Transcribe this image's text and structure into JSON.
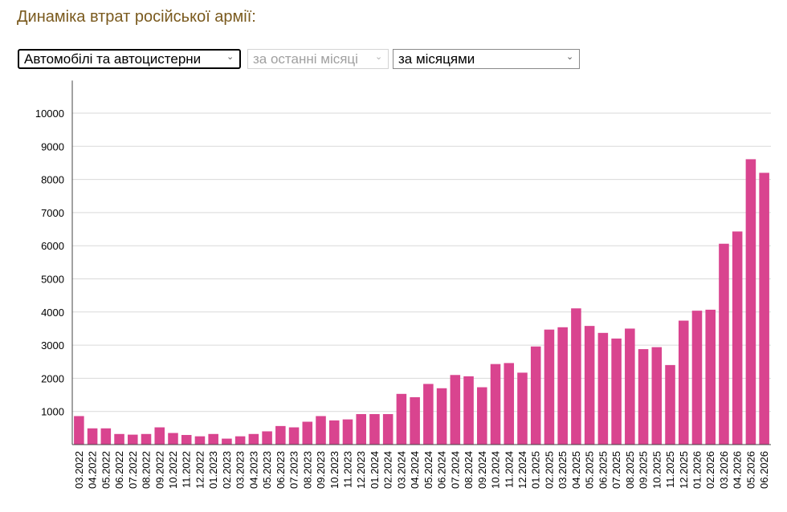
{
  "page": {
    "title": "Динаміка втрат російської армії:"
  },
  "controls": {
    "category": "Автомобілі та автоцистерни",
    "period": "за останні місяці",
    "grouping": "за місяцями"
  },
  "colors": {
    "bar": "#d9448f",
    "grid": "#d9d9d9",
    "axis": "#444444",
    "title": "#7a5a1e"
  },
  "chart_data": {
    "type": "bar",
    "title": "",
    "xlabel": "",
    "ylabel": "",
    "ylim": [
      0,
      10500
    ],
    "yticks": [
      1000,
      2000,
      3000,
      4000,
      5000,
      6000,
      7000,
      8000,
      9000,
      10000
    ],
    "grid": true,
    "legend": "none",
    "categories": [
      "03.2022",
      "04.2022",
      "05.2022",
      "06.2022",
      "07.2022",
      "08.2022",
      "09.2022",
      "10.2022",
      "11.2022",
      "12.2022",
      "01.2023",
      "02.2023",
      "03.2023",
      "04.2023",
      "05.2023",
      "06.2023",
      "07.2023",
      "08.2023",
      "09.2023",
      "10.2023",
      "11.2023",
      "12.2023",
      "01.2024",
      "02.2024",
      "03.2024",
      "04.2024",
      "05.2024",
      "06.2024",
      "07.2024",
      "08.2024",
      "09.2024",
      "10.2024",
      "11.2024",
      "12.2024",
      "01.2025",
      "02.2025",
      "03.2025",
      "04.2025",
      "05.2025",
      "06.2025",
      "07.2025",
      "08.2025",
      "09.2025",
      "10.2025",
      "11.2025",
      "12.2025",
      "01.2026",
      "02.2026",
      "03.2026",
      "04.2026",
      "05.2026",
      "06.2026"
    ],
    "values": [
      860,
      490,
      490,
      320,
      300,
      320,
      520,
      350,
      290,
      250,
      320,
      180,
      250,
      320,
      400,
      560,
      520,
      690,
      860,
      730,
      760,
      920,
      920,
      920,
      1530,
      1430,
      1830,
      1700,
      2100,
      2060,
      1730,
      2430,
      2460,
      2170,
      2960,
      3470,
      3540,
      4110,
      3580,
      3370,
      3200,
      3500,
      2880,
      2940,
      2400,
      3740,
      4040,
      4070,
      6060,
      6430,
      8610,
      8200
    ]
  }
}
